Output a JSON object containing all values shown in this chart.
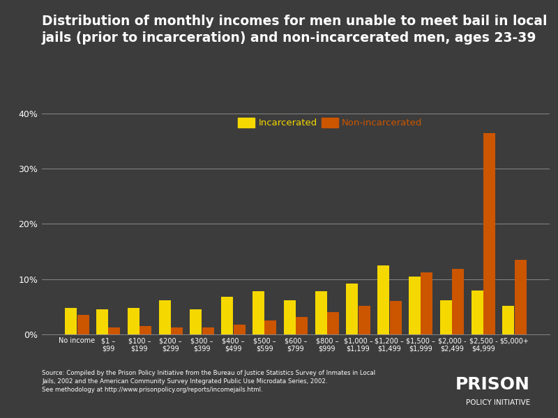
{
  "title": "Distribution of monthly incomes for men unable to meet bail in local\njails (prior to incarceration) and non-incarcerated men, ages 23-39",
  "categories": [
    "No income",
    "$1 –\n$99",
    "$100 –\n$199",
    "$200 –\n$299",
    "$300 –\n$399",
    "$400 –\n$499",
    "$500 –\n$599",
    "$600 –\n$799",
    "$800 –\n$999",
    "$1,000 –\n$1,199",
    "$1,200 –\n$1,499",
    "$1,500 –\n$1,999",
    "$2,000 -\n$2,499",
    "$2,500 -\n$4,999",
    "$5,000+"
  ],
  "incarcerated": [
    4.8,
    4.5,
    4.8,
    6.2,
    4.5,
    6.8,
    7.8,
    6.2,
    7.8,
    9.2,
    12.5,
    10.5,
    6.2,
    8.0,
    5.2
  ],
  "non_incarcerated": [
    3.5,
    1.2,
    1.5,
    1.2,
    1.2,
    1.8,
    2.5,
    3.2,
    4.0,
    5.2,
    6.0,
    11.2,
    11.8,
    36.5,
    13.5
  ],
  "incarcerated_color": "#f5d800",
  "non_incarcerated_color": "#cc5500",
  "background_color": "#3c3c3c",
  "text_color": "#ffffff",
  "grid_color": "#888888",
  "ylim": [
    0,
    42
  ],
  "yticks": [
    0,
    10,
    20,
    30,
    40
  ],
  "ytick_labels": [
    "0%",
    "10%",
    "20%",
    "30%",
    "40%"
  ],
  "source_text": "Source: Compiled by the Prison Policy Initiative from the Bureau of Justice Statistics Survey of Inmates in Local\nJails, 2002 and the American Community Survey Integrated Public Use Microdata Series, 2002.\nSee methodology at http://www.prisonpolicy.org/reports/incomejails.html.",
  "logo_line1": "PRISON",
  "logo_line2": "POLICY INITIATIVE",
  "legend_incarcerated": "Incarcerated",
  "legend_non_incarcerated": "Non-incarcerated",
  "title_fontsize": 13.5,
  "bar_width": 0.38
}
